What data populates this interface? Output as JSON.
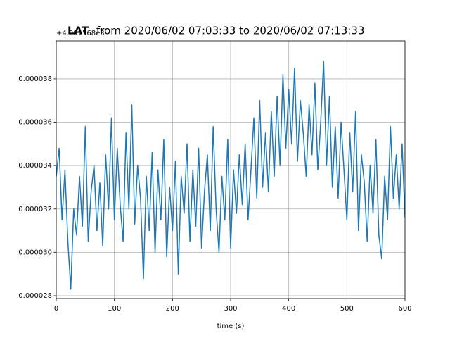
{
  "chart_data": {
    "type": "line",
    "title_prefix": "LAT",
    "title": "from 2020/06/02 07:03:33 to 2020/06/02 07:13:33",
    "y_offset_label": "+4.001568e3",
    "xlabel": "time (s)",
    "xlim": [
      0,
      600
    ],
    "xticks": [
      0,
      100,
      200,
      300,
      400,
      500,
      600
    ],
    "ylim": [
      2.787e-05,
      3.975e-05
    ],
    "yticks": [
      {
        "value": 2.8e-05,
        "label": "0.000028"
      },
      {
        "value": 3e-05,
        "label": "0.000030"
      },
      {
        "value": 3.2e-05,
        "label": "0.000032"
      },
      {
        "value": 3.4e-05,
        "label": "0.000034"
      },
      {
        "value": 3.6e-05,
        "label": "0.000036"
      },
      {
        "value": 3.8e-05,
        "label": "0.000038"
      }
    ],
    "grid": true,
    "x": [
      0,
      5,
      10,
      15,
      20,
      25,
      30,
      35,
      40,
      45,
      50,
      55,
      60,
      65,
      70,
      75,
      80,
      85,
      90,
      95,
      100,
      105,
      110,
      115,
      120,
      125,
      130,
      135,
      140,
      145,
      150,
      155,
      160,
      165,
      170,
      175,
      180,
      185,
      190,
      195,
      200,
      205,
      210,
      215,
      220,
      225,
      230,
      235,
      240,
      245,
      250,
      255,
      260,
      265,
      270,
      275,
      280,
      285,
      290,
      295,
      300,
      305,
      310,
      315,
      320,
      325,
      330,
      335,
      340,
      345,
      350,
      355,
      360,
      365,
      370,
      375,
      380,
      385,
      390,
      395,
      400,
      405,
      410,
      415,
      420,
      425,
      430,
      435,
      440,
      445,
      450,
      455,
      460,
      465,
      470,
      475,
      480,
      485,
      490,
      495,
      500,
      505,
      510,
      515,
      520,
      525,
      530,
      535,
      540,
      545,
      550,
      555,
      560,
      565,
      570,
      575,
      580,
      585,
      590,
      595,
      600
    ],
    "series": [
      {
        "name": "LAT",
        "color": "#1f77b4",
        "values": [
          3.35e-05,
          3.48e-05,
          3.15e-05,
          3.38e-05,
          3.05e-05,
          2.83e-05,
          3.2e-05,
          3.08e-05,
          3.35e-05,
          3.12e-05,
          3.58e-05,
          3.05e-05,
          3.28e-05,
          3.4e-05,
          3.1e-05,
          3.32e-05,
          3.03e-05,
          3.45e-05,
          3.2e-05,
          3.62e-05,
          3.15e-05,
          3.48e-05,
          3.22e-05,
          3.05e-05,
          3.55e-05,
          3.2e-05,
          3.68e-05,
          3.13e-05,
          3.4e-05,
          3.25e-05,
          2.88e-05,
          3.35e-05,
          3.1e-05,
          3.46e-05,
          3e-05,
          3.38e-05,
          3.15e-05,
          3.52e-05,
          2.98e-05,
          3.3e-05,
          3.1e-05,
          3.42e-05,
          2.9e-05,
          3.35e-05,
          3.18e-05,
          3.5e-05,
          3.05e-05,
          3.38e-05,
          3.12e-05,
          3.48e-05,
          3.02e-05,
          3.28e-05,
          3.45e-05,
          3.1e-05,
          3.58e-05,
          3.2e-05,
          3e-05,
          3.35e-05,
          3.15e-05,
          3.52e-05,
          3.02e-05,
          3.38e-05,
          3.18e-05,
          3.45e-05,
          3.22e-05,
          3.5e-05,
          3.15e-05,
          3.38e-05,
          3.62e-05,
          3.25e-05,
          3.7e-05,
          3.3e-05,
          3.55e-05,
          3.28e-05,
          3.65e-05,
          3.35e-05,
          3.72e-05,
          3.4e-05,
          3.82e-05,
          3.48e-05,
          3.75e-05,
          3.5e-05,
          3.85e-05,
          3.42e-05,
          3.7e-05,
          3.55e-05,
          3.35e-05,
          3.68e-05,
          3.45e-05,
          3.78e-05,
          3.38e-05,
          3.6e-05,
          3.88e-05,
          3.4e-05,
          3.72e-05,
          3.3e-05,
          3.58e-05,
          3.25e-05,
          3.6e-05,
          3.38e-05,
          3.15e-05,
          3.55e-05,
          3.28e-05,
          3.65e-05,
          3.1e-05,
          3.45e-05,
          3.32e-05,
          3.05e-05,
          3.4e-05,
          3.18e-05,
          3.52e-05,
          3.08e-05,
          2.97e-05,
          3.35e-05,
          3.15e-05,
          3.58e-05,
          3.25e-05,
          3.45e-05,
          3.2e-05,
          3.5e-05,
          3.16e-05
        ]
      }
    ]
  }
}
